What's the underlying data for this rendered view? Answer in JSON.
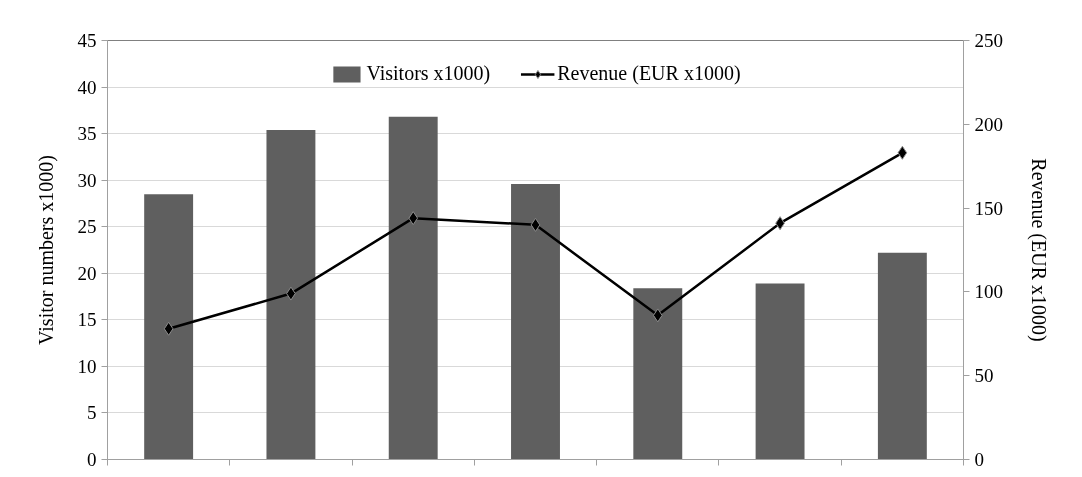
{
  "chart_data": {
    "type": "bar",
    "ylabel": "Visitor numbers x1000)",
    "y2label": "Revenue (EUR x1000)",
    "categories": [
      null,
      null,
      null,
      null,
      null,
      null,
      null
    ],
    "series": [
      {
        "name": "Visitors x1000)",
        "color": "#5f5f5f",
        "values": [
          28.5,
          35.4,
          36.8,
          29.6,
          18.4,
          18.9,
          22.2
        ]
      },
      {
        "name": "Revenue (EUR x1000)",
        "type": "line",
        "axis": "y2",
        "color": "#000000",
        "values": [
          78,
          99,
          144,
          140,
          86,
          141,
          183
        ]
      }
    ],
    "ylim": [
      0,
      45
    ],
    "yticks": [
      0,
      5,
      10,
      15,
      20,
      25,
      30,
      35,
      40,
      45
    ],
    "y2lim": [
      0,
      250
    ],
    "y2ticks": [
      0,
      50,
      100,
      150,
      200,
      250
    ],
    "grid": "y",
    "legend": "top",
    "marker": "diamond",
    "line_style": "solid"
  }
}
